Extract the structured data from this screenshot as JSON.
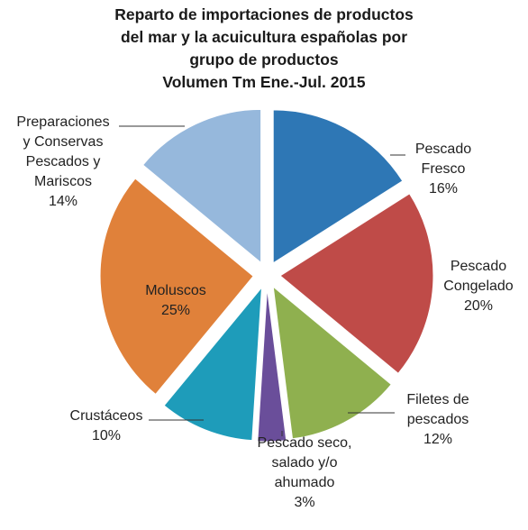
{
  "chart_data": {
    "type": "pie",
    "title": [
      "Reparto de importaciones de productos",
      "del mar y la acuicultura españolas por",
      "grupo de productos",
      "Volumen Tm Ene.-Jul. 2015"
    ],
    "slices": [
      {
        "label": [
          "Pescado",
          "Fresco"
        ],
        "value": 16,
        "value_label": "16%",
        "color": "#2e77b5"
      },
      {
        "label": [
          "Pescado",
          "Congelado"
        ],
        "value": 20,
        "value_label": "20%",
        "color": "#bf4b48"
      },
      {
        "label": [
          "Filetes de",
          "pescados"
        ],
        "value": 12,
        "value_label": "12%",
        "color": "#8fb04f"
      },
      {
        "label": [
          "Pescado seco,",
          "salado y/o",
          "ahumado"
        ],
        "value": 3,
        "value_label": "3%",
        "color": "#6a4e9a"
      },
      {
        "label": [
          "Crustáceos"
        ],
        "value": 10,
        "value_label": "10%",
        "color": "#1e9cba"
      },
      {
        "label": [
          "Moluscos"
        ],
        "value": 25,
        "value_label": "25%",
        "color": "#e0813a"
      },
      {
        "label": [
          "Preparaciones",
          "y Conservas",
          "Pescados y",
          "Mariscos"
        ],
        "value": 14,
        "value_label": "14%",
        "color": "#96b8dc"
      }
    ]
  }
}
